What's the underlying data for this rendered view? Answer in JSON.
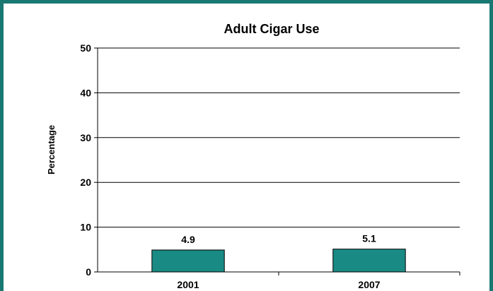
{
  "chart_data": {
    "type": "bar",
    "title": "Adult Cigar Use",
    "xlabel": "",
    "ylabel": "Percentage",
    "categories": [
      "2001",
      "2007"
    ],
    "values": [
      4.9,
      5.1
    ],
    "data_labels": [
      "4.9",
      "5.1"
    ],
    "ylim": [
      0,
      50
    ],
    "yticks": [
      0,
      10,
      20,
      30,
      40,
      50
    ],
    "grid": true,
    "legend": "none",
    "bar_color": "#1a8a84",
    "bar_edge_color": "#000000",
    "frame_color": "#1a7873"
  }
}
